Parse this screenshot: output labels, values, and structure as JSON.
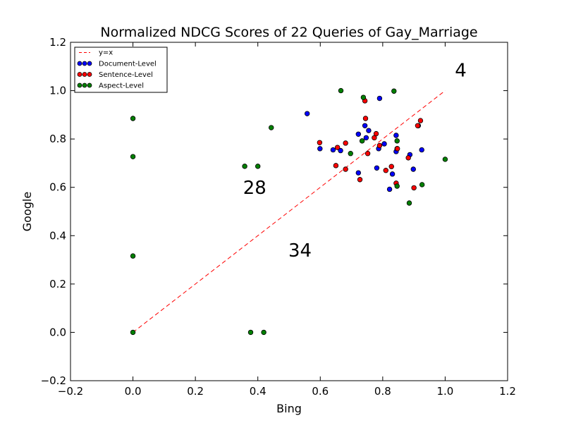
{
  "chart_data": {
    "type": "scatter",
    "title": "Normalized NDCG Scores of 22 Queries of Gay_Marriage",
    "xlabel": "Bing",
    "ylabel": "Google",
    "xlim": [
      -0.2,
      1.2
    ],
    "ylim": [
      -0.2,
      1.2
    ],
    "xticks": [
      "−0.2",
      "0.0",
      "0.2",
      "0.4",
      "0.6",
      "0.8",
      "1.0",
      "1.2"
    ],
    "yticks": [
      "−0.2",
      "0.0",
      "0.2",
      "0.4",
      "0.6",
      "0.8",
      "1.0",
      "1.2"
    ],
    "legend_position": "top-left",
    "grid": false,
    "reference_line": {
      "name": "y=x",
      "color": "#ff0000",
      "from": [
        0,
        0
      ],
      "to": [
        1,
        1
      ]
    },
    "series": [
      {
        "name": "Document-Level",
        "color": "#0000ff",
        "points": [
          [
            0.558,
            0.905
          ],
          [
            0.599,
            0.76
          ],
          [
            0.641,
            0.755
          ],
          [
            0.665,
            0.752
          ],
          [
            0.722,
            0.82
          ],
          [
            0.743,
            0.855
          ],
          [
            0.747,
            0.805
          ],
          [
            0.755,
            0.835
          ],
          [
            0.79,
            0.968
          ],
          [
            0.805,
            0.78
          ],
          [
            0.787,
            0.76
          ],
          [
            0.781,
            0.68
          ],
          [
            0.843,
            0.815
          ],
          [
            0.843,
            0.748
          ],
          [
            0.846,
            0.76
          ],
          [
            0.887,
            0.735
          ],
          [
            0.914,
            0.855
          ],
          [
            0.925,
            0.755
          ],
          [
            0.898,
            0.675
          ],
          [
            0.831,
            0.655
          ],
          [
            0.822,
            0.592
          ],
          [
            0.722,
            0.66
          ]
        ]
      },
      {
        "name": "Sentence-Level",
        "color": "#ff0000",
        "points": [
          [
            0.598,
            0.785
          ],
          [
            0.655,
            0.765
          ],
          [
            0.65,
            0.69
          ],
          [
            0.681,
            0.783
          ],
          [
            0.681,
            0.675
          ],
          [
            0.727,
            0.632
          ],
          [
            0.743,
            0.958
          ],
          [
            0.745,
            0.885
          ],
          [
            0.752,
            0.74
          ],
          [
            0.773,
            0.805
          ],
          [
            0.779,
            0.822
          ],
          [
            0.79,
            0.773
          ],
          [
            0.828,
            0.686
          ],
          [
            0.81,
            0.67
          ],
          [
            0.843,
            0.617
          ],
          [
            0.847,
            0.76
          ],
          [
            0.882,
            0.722
          ],
          [
            0.9,
            0.598
          ],
          [
            0.912,
            0.855
          ],
          [
            0.921,
            0.876
          ]
        ]
      },
      {
        "name": "Aspect-Level",
        "color": "#008000",
        "points": [
          [
            0.0,
            0.0
          ],
          [
            0.0,
            0.885
          ],
          [
            0.0,
            0.727
          ],
          [
            0.0,
            0.316
          ],
          [
            0.377,
            0.0
          ],
          [
            0.419,
            0.0
          ],
          [
            0.358,
            0.687
          ],
          [
            0.4,
            0.687
          ],
          [
            0.443,
            0.847
          ],
          [
            0.666,
            1.0
          ],
          [
            0.697,
            0.74
          ],
          [
            0.734,
            0.792
          ],
          [
            0.738,
            0.972
          ],
          [
            0.836,
            0.998
          ],
          [
            0.846,
            0.792
          ],
          [
            0.846,
            0.605
          ],
          [
            0.885,
            0.535
          ],
          [
            0.926,
            0.611
          ],
          [
            1.0,
            0.716
          ]
        ]
      }
    ],
    "annotations": [
      {
        "text": "4",
        "x": 1.05,
        "y": 1.08
      },
      {
        "text": "28",
        "x": 0.39,
        "y": 0.595
      },
      {
        "text": "34",
        "x": 0.535,
        "y": 0.335
      }
    ]
  }
}
